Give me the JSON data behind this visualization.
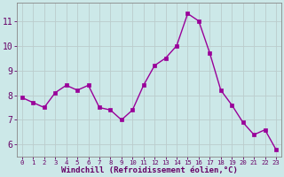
{
  "x": [
    0,
    1,
    2,
    3,
    4,
    5,
    6,
    7,
    8,
    9,
    10,
    11,
    12,
    13,
    14,
    15,
    16,
    17,
    18,
    19,
    20,
    21,
    22,
    23
  ],
  "y": [
    7.9,
    7.7,
    7.5,
    8.1,
    8.4,
    8.2,
    8.4,
    7.5,
    7.4,
    7.0,
    7.4,
    8.4,
    9.2,
    9.5,
    10.0,
    11.3,
    11.0,
    9.7,
    8.2,
    7.6,
    6.9,
    6.4,
    6.6,
    5.8
  ],
  "line_color": "#990099",
  "marker_color": "#990099",
  "bg_color": "#cce8e8",
  "grid_color": "#bbcccc",
  "xlabel": "Windchill (Refroidissement éolien,°C)",
  "xlabel_color": "#660066",
  "tick_color": "#660066",
  "spine_color": "#888888",
  "xlim": [
    -0.5,
    23.5
  ],
  "ylim": [
    5.5,
    11.75
  ],
  "yticks": [
    6,
    7,
    8,
    9,
    10,
    11
  ],
  "xticks": [
    0,
    1,
    2,
    3,
    4,
    5,
    6,
    7,
    8,
    9,
    10,
    11,
    12,
    13,
    14,
    15,
    16,
    17,
    18,
    19,
    20,
    21,
    22,
    23
  ],
  "line_width": 1.0,
  "marker_size": 2.8,
  "xlabel_fontsize": 6.5,
  "ytick_fontsize": 7.0,
  "xtick_fontsize": 5.2
}
